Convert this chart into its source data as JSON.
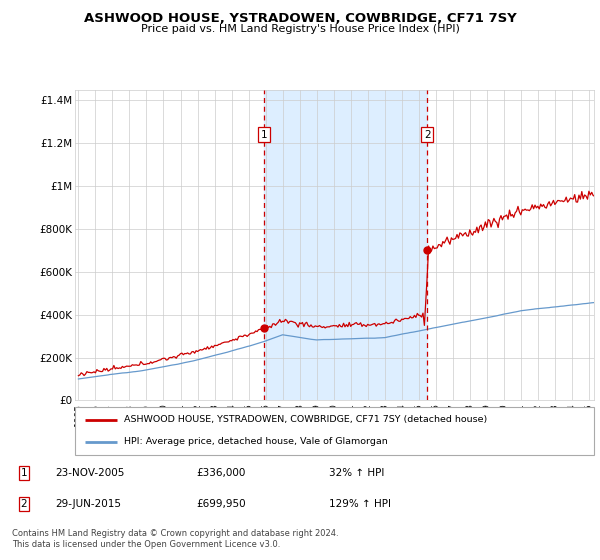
{
  "title": "ASHWOOD HOUSE, YSTRADOWEN, COWBRIDGE, CF71 7SY",
  "subtitle": "Price paid vs. HM Land Registry's House Price Index (HPI)",
  "ylabel_ticks": [
    "£0",
    "£200K",
    "£400K",
    "£600K",
    "£800K",
    "£1M",
    "£1.2M",
    "£1.4M"
  ],
  "ylim": [
    0,
    1450000
  ],
  "xlim_start": 1995.0,
  "xlim_end": 2025.3,
  "sale1_x": 2005.9,
  "sale1_y": 336000,
  "sale1_label": "1",
  "sale2_x": 2015.5,
  "sale2_y": 699950,
  "sale2_label": "2",
  "legend_line1": "ASHWOOD HOUSE, YSTRADOWEN, COWBRIDGE, CF71 7SY (detached house)",
  "legend_line2": "HPI: Average price, detached house, Vale of Glamorgan",
  "note1_label": "1",
  "note1_date": "23-NOV-2005",
  "note1_price": "£336,000",
  "note1_pct": "32% ↑ HPI",
  "note2_label": "2",
  "note2_date": "29-JUN-2015",
  "note2_price": "£699,950",
  "note2_pct": "129% ↑ HPI",
  "footer": "Contains HM Land Registry data © Crown copyright and database right 2024.\nThis data is licensed under the Open Government Licence v3.0.",
  "red_color": "#cc0000",
  "blue_color": "#6699cc",
  "shading_color": "#ddeeff",
  "background_color": "#ffffff",
  "grid_color": "#cccccc"
}
